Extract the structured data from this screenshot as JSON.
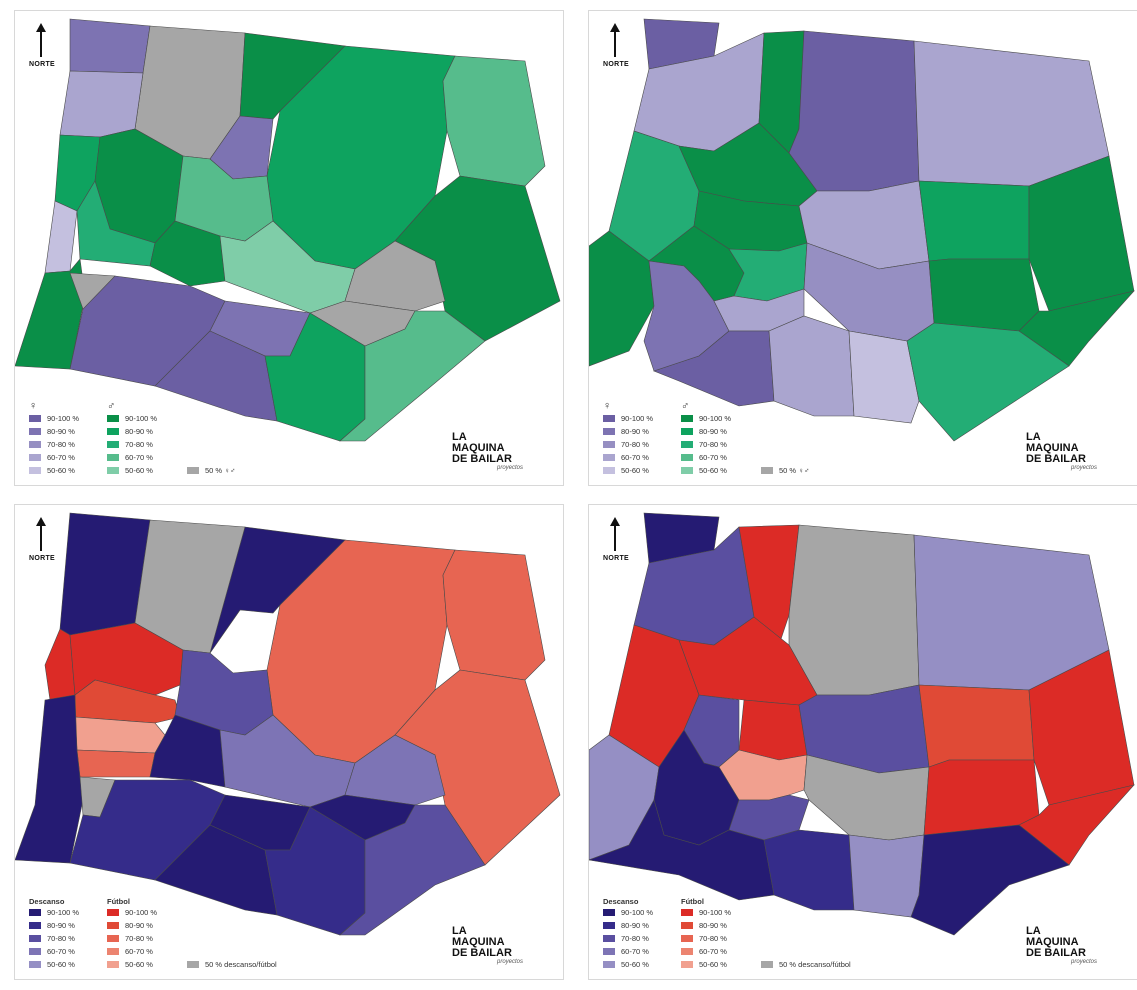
{
  "north_label": "NORTE",
  "logo": {
    "line1": "LA",
    "line2": "MAQUINA",
    "line3": "DE BAILAR",
    "sub": "proyectos"
  },
  "colors": {
    "gray": "#a6a6a6",
    "purple": [
      "#6b5fa3",
      "#7d73b2",
      "#968fc2",
      "#aaa5cf",
      "#c4c0df"
    ],
    "green": [
      "#0a8f48",
      "#0ea35f",
      "#23ad75",
      "#56bc8c",
      "#7fcda8"
    ],
    "navy": [
      "#251b73",
      "#352c8a",
      "#5a4fa0",
      "#7d74b5",
      "#958fc4"
    ],
    "red": [
      "#dc2b26",
      "#e04a36",
      "#e76552",
      "#ec8470",
      "#f1a08f"
    ]
  },
  "legend_gender": {
    "icon_female": "female-figure-icon",
    "icon_male": "male-figure-icon",
    "ranges": [
      "90-100 %",
      "80-90 %",
      "70-80 %",
      "60-70 %",
      "50-60 %"
    ],
    "neutral": "50 %"
  },
  "legend_activity": {
    "left_title": "Descanso",
    "right_title": "Fútbol",
    "ranges": [
      "90-100 %",
      "80-90 %",
      "70-80 %",
      "60-70 %",
      "50-60 %"
    ],
    "neutral": "50 % descanso/fútbol"
  }
}
